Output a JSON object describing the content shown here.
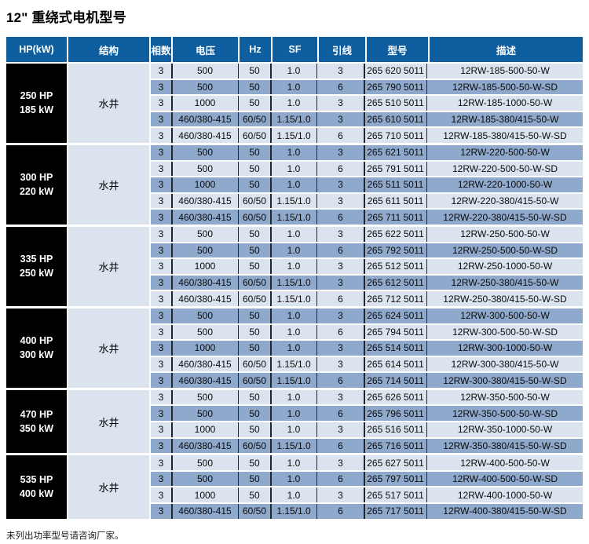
{
  "page": {
    "title": "12\" 重绕式电机型号",
    "footnote": "未列出功率型号请咨询厂家。"
  },
  "colors": {
    "header_bg": "#0f5fa0",
    "row_light": "#dbe4ee",
    "row_dark": "#8ea9cb",
    "hp_cell_bg": "#000000",
    "grid_line_dark": "#22262b",
    "grid_line_light": "#ffffff"
  },
  "table": {
    "columns": [
      "HP(kW)",
      "结构",
      "相数",
      "电压",
      "Hz",
      "SF",
      "引线",
      "型号",
      "描述"
    ],
    "groups": [
      {
        "hp": "250 HP",
        "kw": "185 kW",
        "structure": "水井",
        "rows": [
          [
            "3",
            "500",
            "50",
            "1.0",
            "3",
            "265 620 5011",
            "12RW-185-500-50-W"
          ],
          [
            "3",
            "500",
            "50",
            "1.0",
            "6",
            "265 790 5011",
            "12RW-185-500-50-W-SD"
          ],
          [
            "3",
            "1000",
            "50",
            "1.0",
            "3",
            "265 510 5011",
            "12RW-185-1000-50-W"
          ],
          [
            "3",
            "460/380-415",
            "60/50",
            "1.15/1.0",
            "3",
            "265 610 5011",
            "12RW-185-380/415-50-W"
          ],
          [
            "3",
            "460/380-415",
            "60/50",
            "1.15/1.0",
            "6",
            "265 710 5011",
            "12RW-185-380/415-50-W-SD"
          ]
        ]
      },
      {
        "hp": "300 HP",
        "kw": "220 kW",
        "structure": "水井",
        "rows": [
          [
            "3",
            "500",
            "50",
            "1.0",
            "3",
            "265 621 5011",
            "12RW-220-500-50-W"
          ],
          [
            "3",
            "500",
            "50",
            "1.0",
            "6",
            "265 791 5011",
            "12RW-220-500-50-W-SD"
          ],
          [
            "3",
            "1000",
            "50",
            "1.0",
            "3",
            "265 511 5011",
            "12RW-220-1000-50-W"
          ],
          [
            "3",
            "460/380-415",
            "60/50",
            "1.15/1.0",
            "3",
            "265 611 5011",
            "12RW-220-380/415-50-W"
          ],
          [
            "3",
            "460/380-415",
            "60/50",
            "1.15/1.0",
            "6",
            "265 711 5011",
            "12RW-220-380/415-50-W-SD"
          ]
        ]
      },
      {
        "hp": "335 HP",
        "kw": "250 kW",
        "structure": "水井",
        "rows": [
          [
            "3",
            "500",
            "50",
            "1.0",
            "3",
            "265 622 5011",
            "12RW-250-500-50-W"
          ],
          [
            "3",
            "500",
            "50",
            "1.0",
            "6",
            "265 792 5011",
            "12RW-250-500-50-W-SD"
          ],
          [
            "3",
            "1000",
            "50",
            "1.0",
            "3",
            "265 512 5011",
            "12RW-250-1000-50-W"
          ],
          [
            "3",
            "460/380-415",
            "60/50",
            "1.15/1.0",
            "3",
            "265 612 5011",
            "12RW-250-380/415-50-W"
          ],
          [
            "3",
            "460/380-415",
            "60/50",
            "1.15/1.0",
            "6",
            "265 712 5011",
            "12RW-250-380/415-50-W-SD"
          ]
        ]
      },
      {
        "hp": "400 HP",
        "kw": "300 kW",
        "structure": "水井",
        "rows": [
          [
            "3",
            "500",
            "50",
            "1.0",
            "3",
            "265 624 5011",
            "12RW-300-500-50-W"
          ],
          [
            "3",
            "500",
            "50",
            "1.0",
            "6",
            "265 794 5011",
            "12RW-300-500-50-W-SD"
          ],
          [
            "3",
            "1000",
            "50",
            "1.0",
            "3",
            "265 514 5011",
            "12RW-300-1000-50-W"
          ],
          [
            "3",
            "460/380-415",
            "60/50",
            "1.15/1.0",
            "3",
            "265 614 5011",
            "12RW-300-380/415-50-W"
          ],
          [
            "3",
            "460/380-415",
            "60/50",
            "1.15/1.0",
            "6",
            "265 714 5011",
            "12RW-300-380/415-50-W-SD"
          ]
        ]
      },
      {
        "hp": "470 HP",
        "kw": "350 kW",
        "structure": "水井",
        "rows": [
          [
            "3",
            "500",
            "50",
            "1.0",
            "3",
            "265 626 5011",
            "12RW-350-500-50-W"
          ],
          [
            "3",
            "500",
            "50",
            "1.0",
            "6",
            "265 796 5011",
            "12RW-350-500-50-W-SD"
          ],
          [
            "3",
            "1000",
            "50",
            "1.0",
            "3",
            "265 516 5011",
            "12RW-350-1000-50-W"
          ],
          [
            "3",
            "460/380-415",
            "60/50",
            "1.15/1.0",
            "6",
            "265 716 5011",
            "12RW-350-380/415-50-W-SD"
          ]
        ]
      },
      {
        "hp": "535 HP",
        "kw": "400 kW",
        "structure": "水井",
        "rows": [
          [
            "3",
            "500",
            "50",
            "1.0",
            "3",
            "265 627 5011",
            "12RW-400-500-50-W"
          ],
          [
            "3",
            "500",
            "50",
            "1.0",
            "6",
            "265 797 5011",
            "12RW-400-500-50-W-SD"
          ],
          [
            "3",
            "1000",
            "50",
            "1.0",
            "3",
            "265 517 5011",
            "12RW-400-1000-50-W"
          ],
          [
            "3",
            "460/380-415",
            "60/50",
            "1.15/1.0",
            "6",
            "265 717 5011",
            "12RW-400-380/415-50-W-SD"
          ]
        ]
      }
    ]
  }
}
